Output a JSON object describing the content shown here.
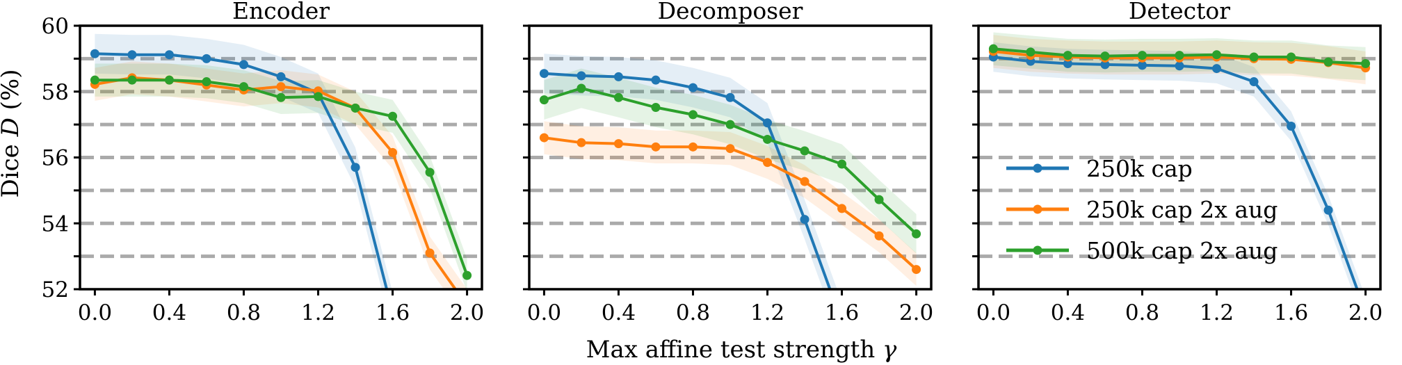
{
  "figure": {
    "ylabel": "Dice D (%)",
    "ylabel_parts": [
      "Dice ",
      "D",
      " (%)"
    ],
    "xlabel": "Max affine test strength γ",
    "xlabel_parts": [
      "Max affine test strength ",
      "γ"
    ]
  },
  "colors": {
    "series": [
      "#1f77b4",
      "#ff7f0e",
      "#2ca02c"
    ],
    "grid": "#aaaaaa"
  },
  "chart_data": [
    {
      "type": "line",
      "title": "Encoder",
      "x": [
        0.0,
        0.2,
        0.4,
        0.6,
        0.8,
        1.0,
        1.2,
        1.4,
        1.6,
        1.8,
        2.0
      ],
      "xticks": [
        "0.0",
        "0.4",
        "0.8",
        "1.2",
        "1.6",
        "2.0"
      ],
      "yticks": [
        "52",
        "54",
        "56",
        "58",
        "60"
      ],
      "ylim": [
        52,
        60
      ],
      "xlim": [
        -0.08,
        2.08
      ],
      "hgrid_dashed": [
        53,
        54,
        55,
        56,
        57,
        58,
        59
      ],
      "legend": null,
      "series": [
        {
          "name": "250k cap",
          "values": [
            59.15,
            59.12,
            59.12,
            59.0,
            58.82,
            58.45,
            57.95,
            55.7,
            51.3,
            null,
            null
          ],
          "band": 0.6
        },
        {
          "name": "250k cap 2x aug",
          "values": [
            58.22,
            58.42,
            58.35,
            58.2,
            58.05,
            58.15,
            58.02,
            57.5,
            56.15,
            53.1,
            51.5
          ],
          "band": 0.5
        },
        {
          "name": "500k cap 2x aug",
          "values": [
            58.35,
            58.35,
            58.35,
            58.3,
            58.15,
            57.82,
            57.85,
            57.5,
            57.25,
            55.55,
            52.42
          ],
          "band": 0.5
        }
      ]
    },
    {
      "type": "line",
      "title": "Decomposer",
      "x": [
        0.0,
        0.2,
        0.4,
        0.6,
        0.8,
        1.0,
        1.2,
        1.4,
        1.6,
        1.8,
        2.0
      ],
      "xticks": [
        "0.0",
        "0.4",
        "0.8",
        "1.2",
        "1.6",
        "2.0"
      ],
      "yticks": [],
      "ylim": [
        52,
        60
      ],
      "xlim": [
        -0.08,
        2.08
      ],
      "hgrid_dashed": [
        53,
        54,
        55,
        56,
        57,
        58,
        59
      ],
      "legend": null,
      "series": [
        {
          "name": "250k cap",
          "values": [
            58.55,
            58.48,
            58.45,
            58.35,
            58.12,
            57.82,
            57.05,
            54.12,
            51.0,
            null,
            null
          ],
          "band": 0.6
        },
        {
          "name": "250k cap 2x aug",
          "values": [
            56.6,
            56.45,
            56.42,
            56.32,
            56.32,
            56.27,
            55.85,
            55.27,
            54.45,
            53.62,
            52.6
          ],
          "band": 0.5
        },
        {
          "name": "500k cap 2x aug",
          "values": [
            57.75,
            58.1,
            57.82,
            57.52,
            57.3,
            57.0,
            56.55,
            56.2,
            55.8,
            54.72,
            53.68
          ],
          "band": 0.6
        }
      ]
    },
    {
      "type": "line",
      "title": "Detector",
      "x": [
        0.0,
        0.2,
        0.4,
        0.6,
        0.8,
        1.0,
        1.2,
        1.4,
        1.6,
        1.8,
        2.0
      ],
      "xticks": [
        "0.0",
        "0.4",
        "0.8",
        "1.2",
        "1.6",
        "2.0"
      ],
      "yticks": [],
      "ylim": [
        52,
        60
      ],
      "xlim": [
        -0.08,
        2.08
      ],
      "hgrid_dashed": [
        53,
        54,
        55,
        56,
        57,
        58,
        59
      ],
      "legend": {
        "entries": [
          "250k cap",
          "250k cap 2x aug",
          "500k cap 2x aug"
        ],
        "placement": "center-left"
      },
      "series": [
        {
          "name": "250k cap",
          "values": [
            59.05,
            58.92,
            58.85,
            58.82,
            58.8,
            58.78,
            58.7,
            58.3,
            56.95,
            54.4,
            51.3
          ],
          "band": 0.45
        },
        {
          "name": "250k cap 2x aug",
          "values": [
            59.22,
            59.1,
            59.05,
            59.02,
            59.02,
            59.02,
            59.05,
            59.0,
            58.98,
            58.88,
            58.72
          ],
          "band": 0.5
        },
        {
          "name": "500k cap 2x aug",
          "values": [
            59.3,
            59.2,
            59.1,
            59.08,
            59.1,
            59.1,
            59.12,
            59.05,
            59.05,
            58.9,
            58.85
          ],
          "band": 0.5
        }
      ]
    }
  ]
}
